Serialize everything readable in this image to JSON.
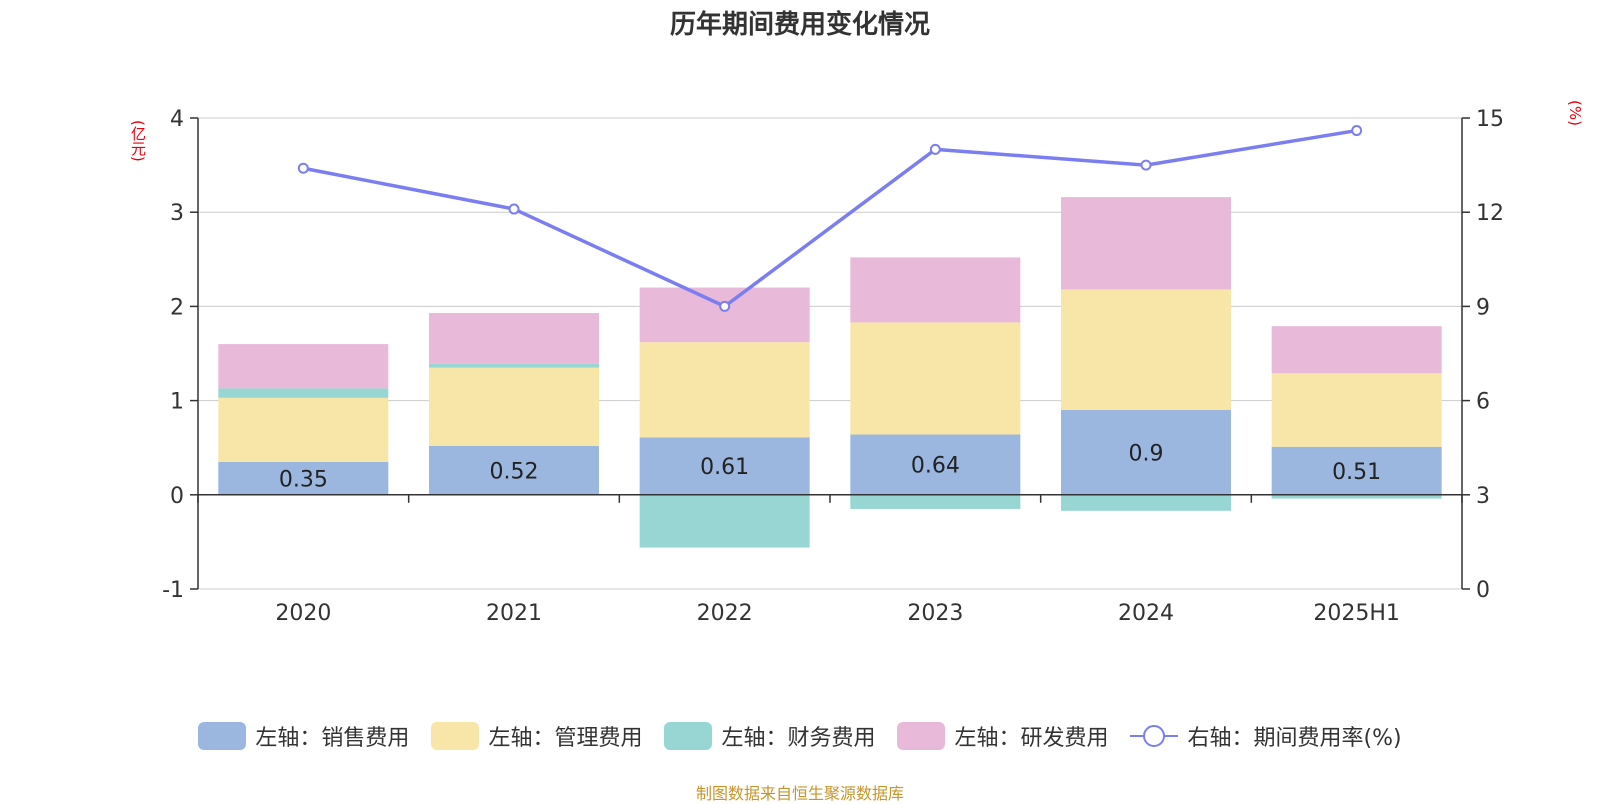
{
  "title": "历年期间费用变化情况",
  "left_unit": "(亿元)",
  "right_unit": "(%)",
  "footer": "制图数据来自恒生聚源数据库",
  "colors": {
    "sales": "#9bb7e0",
    "admin": "#f8e6a8",
    "finance": "#98d6d4",
    "rnd": "#e8b9d9",
    "rate": "#7b7ef0",
    "grid": "#cccccc",
    "axis": "#333333",
    "unit": "#e8000b",
    "footer": "#c6952b"
  },
  "legend": [
    {
      "label": "左轴：销售费用",
      "key": "sales"
    },
    {
      "label": "左轴：管理费用",
      "key": "admin"
    },
    {
      "label": "左轴：财务费用",
      "key": "finance"
    },
    {
      "label": "左轴：研发费用",
      "key": "rnd"
    },
    {
      "label": "右轴：期间费用率(%)",
      "key": "rate"
    }
  ],
  "chart_data": {
    "type": "bar",
    "stacked": true,
    "categories": [
      "2020",
      "2021",
      "2022",
      "2023",
      "2024",
      "2025H1"
    ],
    "series": [
      {
        "name": "左轴：销售费用",
        "key": "sales",
        "axis": "left",
        "values": [
          0.35,
          0.52,
          0.61,
          0.64,
          0.9,
          0.51
        ],
        "labels": [
          "0.35",
          "0.52",
          "0.61",
          "0.64",
          "0.9",
          "0.51"
        ]
      },
      {
        "name": "左轴：管理费用",
        "key": "admin",
        "axis": "left",
        "values": [
          0.68,
          0.83,
          1.01,
          1.19,
          1.28,
          0.78
        ]
      },
      {
        "name": "左轴：财务费用",
        "key": "finance",
        "axis": "left",
        "values": [
          0.1,
          0.04,
          -0.56,
          -0.15,
          -0.17,
          -0.04
        ]
      },
      {
        "name": "左轴：研发费用",
        "key": "rnd",
        "axis": "left",
        "values": [
          0.47,
          0.54,
          0.58,
          0.69,
          0.98,
          0.5
        ]
      },
      {
        "name": "右轴：期间费用率(%)",
        "key": "rate",
        "axis": "right",
        "type": "line",
        "values": [
          13.4,
          12.1,
          9.0,
          14.0,
          13.5,
          14.6
        ]
      }
    ],
    "y_left": {
      "min": -1,
      "max": 4,
      "ticks": [
        -1,
        0,
        1,
        2,
        3,
        4
      ]
    },
    "y_right": {
      "min": 0,
      "max": 15,
      "ticks": [
        0,
        3,
        6,
        9,
        12,
        15
      ]
    },
    "grid": true,
    "legend_position": "bottom"
  }
}
